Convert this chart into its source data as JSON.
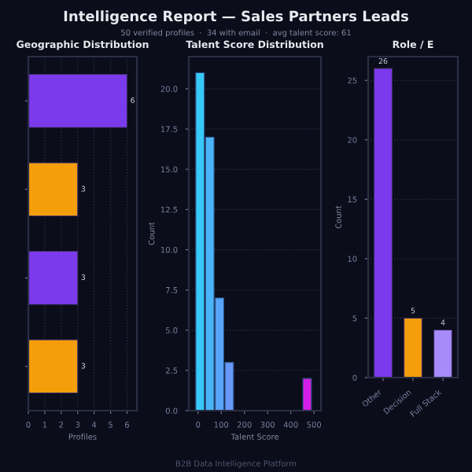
{
  "chart_data": [
    {
      "type": "bar",
      "orientation": "horizontal",
      "title": "Geographic Distribution",
      "xlabel": "Profiles",
      "categories": [
        null,
        null,
        null,
        null
      ],
      "values": [
        6,
        3,
        3,
        3
      ],
      "colors": [
        "#7c3aed",
        "#f59e0b",
        "#7c3aed",
        "#f59e0b"
      ],
      "xlim": [
        0,
        6.6
      ],
      "xticks": [
        0,
        1,
        2,
        3,
        4,
        5,
        6
      ],
      "data_labels": true,
      "grid": "x",
      "tick_labels": "x"
    },
    {
      "type": "histogram",
      "title": "Talent Score Distribution",
      "xlabel": "Talent Score",
      "ylabel": "Count",
      "bins": [
        -10,
        32,
        74,
        116,
        158,
        200,
        242,
        284,
        326,
        368,
        410,
        452,
        494
      ],
      "values": [
        21,
        17,
        7,
        3,
        0,
        0,
        0,
        0,
        0,
        0,
        0,
        2
      ],
      "colors": [
        "#38c8f8",
        "#4ab4f8",
        "#58a4f8",
        "#6898f8",
        "#6898f8",
        "#6898f8",
        "#6898f8",
        "#6898f8",
        "#6898f8",
        "#6898f8",
        "#6898f8",
        "#d21ee8"
      ],
      "xlim": [
        -40,
        530
      ],
      "xticks": [
        0,
        100,
        200,
        300,
        400,
        500
      ],
      "ylim": [
        0,
        22
      ],
      "yticks": [
        {
          "value": 0,
          "label": "0.0"
        },
        2.5,
        {
          "value": 5,
          "label": "5.0"
        },
        7.5,
        {
          "value": 10,
          "label": "10.0"
        },
        12.5,
        {
          "value": 15,
          "label": "15.0"
        },
        17.5,
        {
          "value": 20,
          "label": "20.0"
        }
      ],
      "grid": "y"
    },
    {
      "type": "bar",
      "title": "Role / E",
      "ylabel": "Count",
      "categories": [
        "Other",
        "Decision",
        "Full Stack"
      ],
      "values": [
        26,
        5,
        4
      ],
      "colors": [
        "#7c3aed",
        "#f59e0b",
        "#a78bfa"
      ],
      "ylim": [
        0,
        27
      ],
      "yticks": [
        0,
        5,
        10,
        15,
        20,
        25
      ],
      "data_labels": true,
      "grid": "y"
    },
    {
      "type": "other",
      "title": "Intelligence Report — Sales Partners Leads",
      "subtitle": "50 verified profiles  ·  34 with email  ·  avg talent score: 61",
      "annotations": [
        "B2B Data Intelligence Platform"
      ]
    }
  ]
}
